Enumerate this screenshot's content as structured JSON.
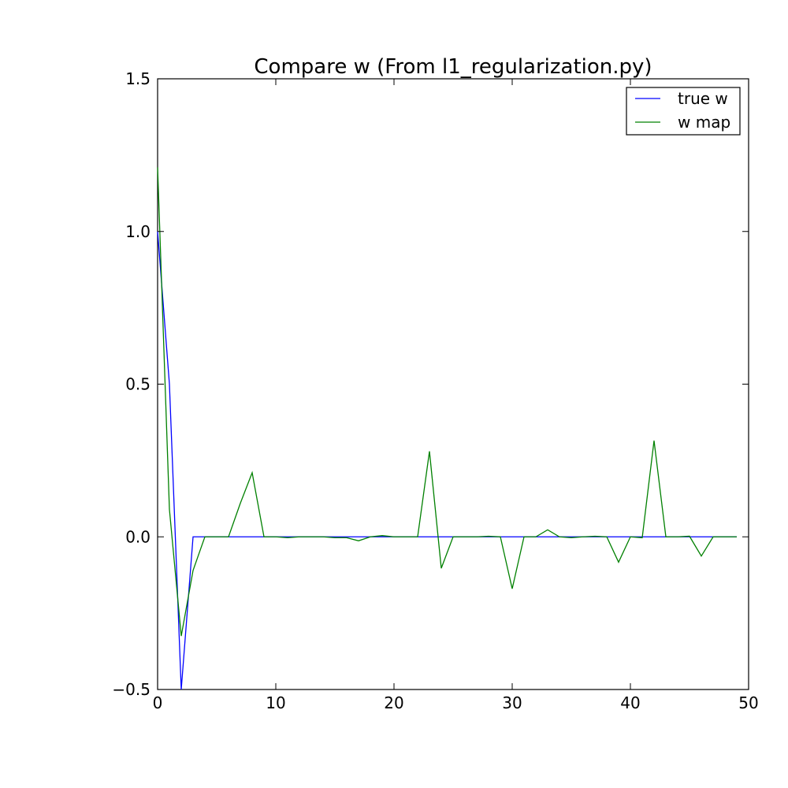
{
  "chart_data": {
    "type": "line",
    "title": "Compare w (From l1_regularization.py)",
    "xlabel": "",
    "ylabel": "",
    "xlim": [
      0,
      50
    ],
    "ylim": [
      -0.5,
      1.5
    ],
    "xticks": [
      0,
      10,
      20,
      30,
      40,
      50
    ],
    "xtick_labels": [
      "0",
      "10",
      "20",
      "30",
      "40",
      "50"
    ],
    "yticks": [
      -0.5,
      0.0,
      0.5,
      1.0,
      1.5
    ],
    "ytick_labels": [
      "−0.5",
      "0.0",
      "0.5",
      "1.0",
      "1.5"
    ],
    "grid": false,
    "legend_position": "top-right",
    "x": [
      0,
      1,
      2,
      3,
      4,
      5,
      6,
      7,
      8,
      9,
      10,
      11,
      12,
      13,
      14,
      15,
      16,
      17,
      18,
      19,
      20,
      21,
      22,
      23,
      24,
      25,
      26,
      27,
      28,
      29,
      30,
      31,
      32,
      33,
      34,
      35,
      36,
      37,
      38,
      39,
      40,
      41,
      42,
      43,
      44,
      45,
      46,
      47,
      48,
      49
    ],
    "series": [
      {
        "name": "true w",
        "color": "#0000ff",
        "values": [
          1.0,
          0.5,
          -0.5,
          0,
          0,
          0,
          0,
          0,
          0,
          0,
          0,
          0,
          0,
          0,
          0,
          0,
          0,
          0,
          0,
          0,
          0,
          0,
          0,
          0,
          0,
          0,
          0,
          0,
          0,
          0,
          0,
          0,
          0,
          0,
          0,
          0,
          0,
          0,
          0,
          0,
          0,
          0,
          0,
          0,
          0,
          0,
          0,
          0,
          0,
          0
        ]
      },
      {
        "name": "w map",
        "color": "#008000",
        "values": [
          1.21,
          0.09,
          -0.325,
          -0.11,
          0.0,
          0.0,
          0.0,
          0.11,
          0.21,
          0.0,
          0.0,
          -0.003,
          0.0,
          0.0,
          0.0,
          -0.003,
          -0.003,
          -0.013,
          0.0,
          0.004,
          0.0,
          0.0,
          0.0,
          0.28,
          -0.103,
          0.0,
          0.0,
          0.0,
          0.002,
          0.0,
          -0.17,
          0.0,
          0.0,
          0.023,
          0.0,
          -0.003,
          0.0,
          0.002,
          0.0,
          -0.083,
          0.0,
          -0.003,
          0.315,
          0.0,
          0.0,
          0.002,
          -0.063,
          0.0,
          0.0,
          0.0
        ]
      }
    ]
  }
}
